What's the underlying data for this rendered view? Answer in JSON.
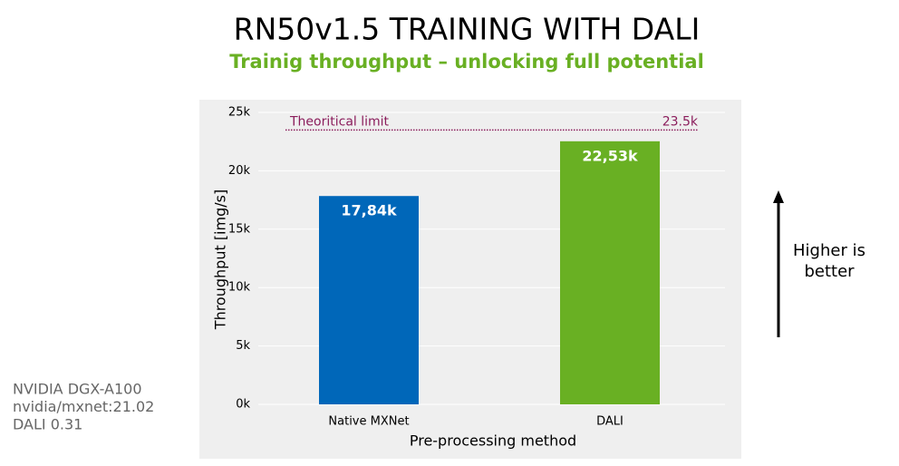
{
  "chart_data": {
    "type": "bar",
    "title": "RN50v1.5 TRAINING WITH DALI",
    "subtitle": "Trainig throughput – unlocking full potential",
    "x_label": "Pre-processing method",
    "y_label": "Throughput [img/s]",
    "categories": [
      "Native MXNet",
      "DALI"
    ],
    "values": [
      17840,
      22530
    ],
    "value_labels": [
      "17,84k",
      "22,53k"
    ],
    "colors": [
      "#0067b9",
      "#69b023"
    ],
    "ylim": [
      0,
      25000
    ],
    "yticks": [
      {
        "value": 0,
        "label": "0k"
      },
      {
        "value": 5000,
        "label": "5k"
      },
      {
        "value": 10000,
        "label": "10k"
      },
      {
        "value": 15000,
        "label": "15k"
      },
      {
        "value": 20000,
        "label": "20k"
      },
      {
        "value": 25000,
        "label": "25k"
      }
    ],
    "grid": true,
    "reference_line": {
      "value": 23500,
      "label": "23.5k",
      "text": "Theoritical limit",
      "color": "#8b1d5c"
    },
    "annotation_lines": [
      "Higher is",
      "better"
    ],
    "notes": [
      "NVIDIA DGX-A100",
      "nvidia/mxnet:21.02",
      "DALI 0.31"
    ]
  }
}
